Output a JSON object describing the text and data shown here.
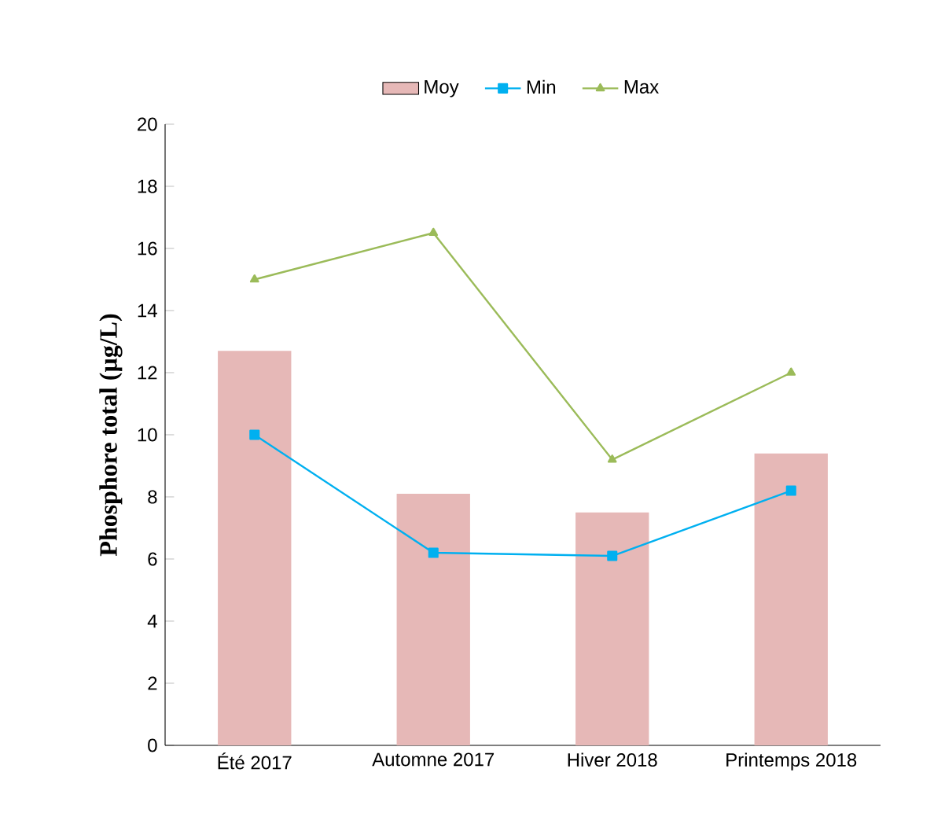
{
  "chart_data": {
    "type": "bar",
    "ylabel": "Phosphore total (µg/L)",
    "categories": [
      "Été 2017",
      "Automne 2017",
      "Hiver 2018",
      "Printemps 2018"
    ],
    "series": [
      {
        "name": "Moy",
        "color": "#e6b8b7",
        "values": [
          12.7,
          8.1,
          7.5,
          9.4
        ]
      },
      {
        "name": "Min",
        "type": "line",
        "color": "#00b0f0",
        "marker": "square",
        "values": [
          10.0,
          6.2,
          6.1,
          8.2
        ]
      },
      {
        "name": "Max",
        "type": "line",
        "color": "#9bbb59",
        "marker": "triangle",
        "values": [
          15.0,
          16.5,
          9.2,
          12.0
        ]
      }
    ],
    "ylim": [
      0,
      20
    ],
    "yticks": [
      0,
      2,
      4,
      6,
      8,
      10,
      12,
      14,
      16,
      18,
      20
    ],
    "legend": "top",
    "grid": false
  }
}
